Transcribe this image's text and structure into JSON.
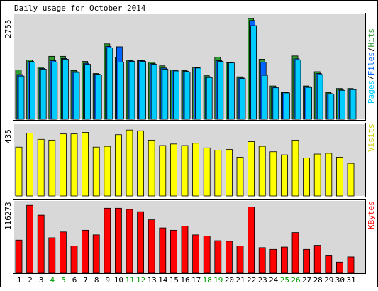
{
  "chart_data": [
    {
      "type": "bar",
      "title": "Daily usage for October 2014",
      "ylabel": "Pages / Files / Hits",
      "ymax_label": "2755",
      "ylim": [
        0,
        2755
      ],
      "categories": [
        "1",
        "2",
        "3",
        "4",
        "5",
        "6",
        "7",
        "8",
        "9",
        "10",
        "11",
        "12",
        "13",
        "14",
        "15",
        "16",
        "17",
        "18",
        "19",
        "20",
        "21",
        "22",
        "23",
        "24",
        "25",
        "26",
        "27",
        "28",
        "29",
        "30",
        "31"
      ],
      "series": [
        {
          "name": "Hits",
          "color": "#339933",
          "values": [
            1350,
            1620,
            1420,
            1720,
            1720,
            1330,
            1580,
            1250,
            2060,
            1700,
            1620,
            1610,
            1560,
            1460,
            1350,
            1330,
            1420,
            1190,
            1700,
            1550,
            1160,
            2755,
            1640,
            910,
            740,
            1730,
            910,
            1300,
            730,
            840,
            840
          ]
        },
        {
          "name": "Files",
          "color": "#0066ff",
          "values": [
            1220,
            1580,
            1390,
            1600,
            1660,
            1300,
            1530,
            1230,
            1990,
            1980,
            1600,
            1600,
            1520,
            1400,
            1340,
            1310,
            1410,
            1160,
            1600,
            1550,
            1130,
            2700,
            1560,
            880,
            730,
            1650,
            890,
            1250,
            700,
            800,
            820
          ]
        },
        {
          "name": "Pages",
          "color": "#00ccff",
          "values": [
            1180,
            1560,
            1370,
            1560,
            1640,
            1280,
            1500,
            1210,
            1950,
            1560,
            1580,
            1580,
            1500,
            1370,
            1320,
            1290,
            1400,
            1140,
            1580,
            1540,
            1110,
            2560,
            1200,
            860,
            720,
            1620,
            870,
            1220,
            690,
            790,
            810
          ]
        }
      ]
    },
    {
      "type": "bar",
      "ylabel": "Visits",
      "ymax_label": "435",
      "ylim": [
        0,
        435
      ],
      "categories": [
        "1",
        "2",
        "3",
        "4",
        "5",
        "6",
        "7",
        "8",
        "9",
        "10",
        "11",
        "12",
        "13",
        "14",
        "15",
        "16",
        "17",
        "18",
        "19",
        "20",
        "21",
        "22",
        "23",
        "24",
        "25",
        "26",
        "27",
        "28",
        "29",
        "30",
        "31"
      ],
      "series": [
        {
          "name": "Visits",
          "color": "#ffff00",
          "values": [
            315,
            405,
            365,
            360,
            400,
            400,
            410,
            315,
            320,
            395,
            425,
            420,
            360,
            325,
            335,
            325,
            340,
            310,
            295,
            300,
            250,
            350,
            320,
            285,
            265,
            360,
            245,
            270,
            275,
            250,
            210
          ]
        }
      ]
    },
    {
      "type": "bar",
      "ylabel": "KBytes",
      "ymax_label": "116273",
      "ylim": [
        0,
        116273
      ],
      "categories": [
        "1",
        "2",
        "3",
        "4",
        "5",
        "6",
        "7",
        "8",
        "9",
        "10",
        "11",
        "12",
        "13",
        "14",
        "15",
        "16",
        "17",
        "18",
        "19",
        "20",
        "21",
        "22",
        "23",
        "24",
        "25",
        "26",
        "27",
        "28",
        "29",
        "30",
        "31"
      ],
      "series": [
        {
          "name": "KBytes",
          "color": "#ff0000",
          "values": [
            56000,
            116000,
            99000,
            60000,
            70000,
            46000,
            73000,
            65000,
            111000,
            111000,
            109000,
            105000,
            91000,
            77000,
            73000,
            80000,
            65000,
            63000,
            55000,
            54000,
            46000,
            113000,
            43000,
            40000,
            44000,
            69000,
            40000,
            47000,
            30000,
            18000,
            27000
          ]
        }
      ]
    }
  ],
  "weekend_days": [
    "4",
    "5",
    "11",
    "12",
    "18",
    "19",
    "25",
    "26"
  ],
  "colors": {
    "panel_bg": "#d8d8d8",
    "frame_bg": "#ffffff",
    "weekday_label": "#000000",
    "weekend_label": "#00a000"
  }
}
